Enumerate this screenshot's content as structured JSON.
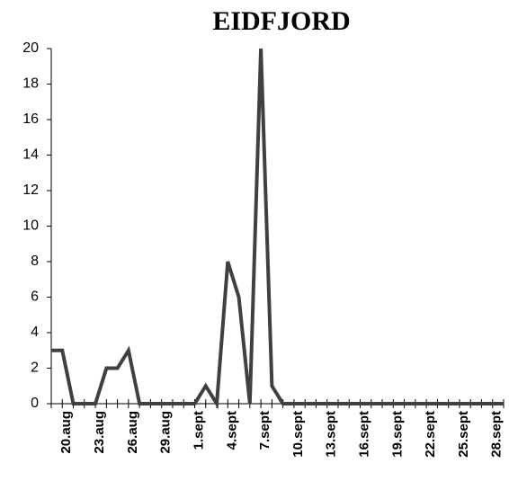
{
  "chart_data": {
    "type": "line",
    "title": "EIDFJORD",
    "categories": [
      null,
      "20.aug",
      null,
      null,
      "23.aug",
      null,
      null,
      "26.aug",
      null,
      null,
      "29.aug",
      null,
      null,
      "1.sept",
      null,
      null,
      "4.sept",
      null,
      null,
      "7.sept",
      null,
      null,
      "10.sept",
      null,
      null,
      "13.sept",
      null,
      null,
      "16.sept",
      null,
      null,
      "19.sept",
      null,
      null,
      "22.sept",
      null,
      null,
      "25.sept",
      null,
      null,
      "28.sept",
      null
    ],
    "series": [
      {
        "name": "EIDFJORD",
        "color": "#404040",
        "values": [
          3,
          3,
          0,
          0,
          0,
          2,
          2,
          3,
          0,
          0,
          0,
          0,
          0,
          0,
          1,
          0,
          8,
          6,
          0,
          20,
          1,
          0,
          0,
          0,
          0,
          0,
          0,
          0,
          0,
          0,
          0,
          0,
          0,
          0,
          0,
          0,
          0,
          0,
          0,
          0,
          0,
          0
        ]
      }
    ],
    "ylim": [
      0,
      20
    ],
    "yticks": [
      0,
      2,
      4,
      6,
      8,
      10,
      12,
      14,
      16,
      18,
      20
    ],
    "grid": false
  }
}
